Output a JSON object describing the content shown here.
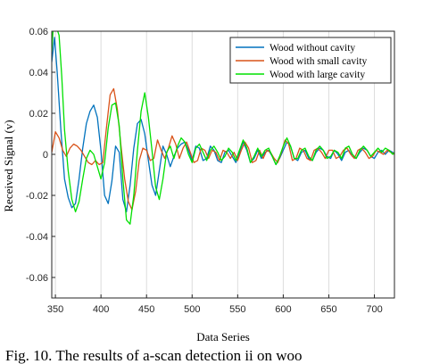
{
  "chart_data": {
    "type": "line",
    "title": "",
    "xlabel": "Data Series",
    "ylabel": "Received Signal (v)",
    "xlim": [
      346,
      722
    ],
    "ylim": [
      -0.07,
      0.06
    ],
    "xticks": [
      350,
      400,
      450,
      500,
      550,
      600,
      650,
      700
    ],
    "yticks": [
      -0.06,
      -0.04,
      -0.02,
      0,
      0.02,
      0.04,
      0.06
    ],
    "xtick_labels": [
      "350",
      "400",
      "450",
      "500",
      "550",
      "600",
      "650",
      "700"
    ],
    "ytick_labels": [
      "-0.06",
      "-0.04",
      "-0.02",
      "0",
      "0.02",
      "0.04",
      "0.06"
    ],
    "grid": "vertical",
    "legend_position": "top-right",
    "series": [
      {
        "name": "Wood without cavity",
        "color": "#0072BD",
        "x": [
          346,
          349,
          352,
          356,
          360,
          364,
          368,
          372,
          376,
          380,
          384,
          388,
          392,
          396,
          400,
          404,
          408,
          412,
          416,
          420,
          424,
          428,
          432,
          436,
          440,
          444,
          448,
          452,
          456,
          460,
          464,
          468,
          472,
          476,
          480,
          484,
          488,
          492,
          496,
          500,
          504,
          508,
          512,
          516,
          520,
          524,
          528,
          532,
          536,
          540,
          544,
          548,
          552,
          556,
          560,
          564,
          568,
          572,
          576,
          580,
          584,
          588,
          592,
          596,
          600,
          604,
          608,
          612,
          616,
          620,
          624,
          628,
          632,
          636,
          640,
          644,
          648,
          652,
          656,
          660,
          664,
          668,
          672,
          676,
          680,
          684,
          688,
          692,
          696,
          700,
          704,
          708,
          712,
          716,
          720,
          722
        ],
        "values": [
          0.045,
          0.057,
          0.04,
          0.012,
          -0.012,
          -0.021,
          -0.026,
          -0.024,
          -0.012,
          0.003,
          0.015,
          0.021,
          0.024,
          0.018,
          0.002,
          -0.02,
          -0.024,
          -0.013,
          0.004,
          0.001,
          -0.022,
          -0.028,
          -0.015,
          0.003,
          0.015,
          0.017,
          0.01,
          -0.003,
          -0.015,
          -0.02,
          -0.008,
          0.004,
          0.0,
          -0.006,
          -0.001,
          0.003,
          0.005,
          0.006,
          0.002,
          -0.003,
          0.004,
          0.003,
          -0.003,
          -0.002,
          0.004,
          0.002,
          -0.003,
          -0.004,
          0.001,
          0.002,
          -0.001,
          -0.004,
          0.001,
          0.006,
          0.002,
          -0.004,
          -0.002,
          0.002,
          -0.002,
          0.001,
          0.002,
          -0.001,
          -0.005,
          -0.002,
          0.002,
          0.006,
          0.004,
          -0.002,
          -0.003,
          0.001,
          0.002,
          -0.002,
          -0.003,
          0.001,
          0.003,
          0.002,
          -0.001,
          -0.002,
          0.002,
          0.0,
          -0.003,
          0.001,
          0.002,
          -0.001,
          -0.002,
          0.001,
          0.003,
          0.002,
          -0.001,
          -0.002,
          0.001,
          0.002,
          0.0,
          0.002,
          0.001,
          0.0
        ]
      },
      {
        "name": "Wood with small cavity",
        "color": "#D95319",
        "x": [
          346,
          350,
          354,
          358,
          362,
          366,
          370,
          374,
          378,
          382,
          386,
          390,
          394,
          398,
          402,
          406,
          410,
          414,
          418,
          422,
          426,
          430,
          434,
          438,
          442,
          446,
          450,
          454,
          458,
          462,
          466,
          470,
          474,
          478,
          482,
          486,
          490,
          494,
          498,
          502,
          506,
          510,
          514,
          518,
          522,
          526,
          530,
          534,
          538,
          542,
          546,
          550,
          554,
          558,
          562,
          566,
          570,
          574,
          578,
          582,
          586,
          590,
          594,
          598,
          602,
          606,
          610,
          614,
          618,
          622,
          626,
          630,
          634,
          638,
          642,
          646,
          650,
          654,
          658,
          662,
          666,
          670,
          674,
          678,
          682,
          686,
          690,
          694,
          698,
          702,
          706,
          710,
          714,
          718,
          722
        ],
        "values": [
          0.001,
          0.011,
          0.008,
          0.002,
          -0.001,
          0.003,
          0.005,
          0.004,
          0.002,
          -0.001,
          -0.004,
          -0.005,
          -0.003,
          -0.005,
          -0.004,
          0.013,
          0.029,
          0.032,
          0.022,
          0.004,
          -0.012,
          -0.023,
          -0.027,
          -0.018,
          -0.003,
          0.003,
          0.002,
          -0.003,
          -0.002,
          0.007,
          0.002,
          -0.002,
          0.003,
          0.009,
          0.005,
          -0.002,
          0.003,
          0.006,
          0.001,
          -0.004,
          -0.003,
          0.003,
          0.002,
          -0.002,
          0.002,
          0.001,
          -0.003,
          0.002,
          0.001,
          -0.002,
          0.001,
          -0.003,
          0.002,
          0.006,
          0.003,
          -0.004,
          -0.003,
          0.002,
          -0.002,
          0.002,
          0.001,
          -0.002,
          -0.004,
          0.001,
          0.007,
          0.005,
          -0.003,
          -0.002,
          0.003,
          0.002,
          -0.002,
          -0.003,
          0.002,
          0.003,
          0.001,
          -0.002,
          0.002,
          0.002,
          -0.002,
          -0.001,
          0.002,
          0.003,
          0.0,
          -0.002,
          0.002,
          0.003,
          0.001,
          -0.002,
          -0.001,
          0.002,
          0.001,
          0.0,
          0.002,
          0.001,
          0.0
        ]
      },
      {
        "name": "Wood with large cavity",
        "color": "#00E000",
        "x": [
          346,
          348,
          351,
          354,
          357,
          360,
          364,
          368,
          372,
          376,
          380,
          384,
          388,
          392,
          396,
          400,
          404,
          408,
          412,
          416,
          420,
          424,
          428,
          432,
          436,
          440,
          444,
          448,
          452,
          456,
          460,
          464,
          468,
          472,
          476,
          480,
          484,
          488,
          492,
          496,
          500,
          504,
          508,
          512,
          516,
          520,
          524,
          528,
          532,
          536,
          540,
          544,
          548,
          552,
          556,
          560,
          564,
          568,
          572,
          576,
          580,
          584,
          588,
          592,
          596,
          600,
          604,
          608,
          612,
          616,
          620,
          624,
          628,
          632,
          636,
          640,
          644,
          648,
          652,
          656,
          660,
          664,
          668,
          672,
          676,
          680,
          684,
          688,
          692,
          696,
          700,
          704,
          708,
          712,
          716,
          720,
          722
        ],
        "values": [
          0.05,
          0.065,
          0.062,
          0.058,
          0.038,
          0.012,
          -0.008,
          -0.022,
          -0.028,
          -0.023,
          -0.012,
          -0.002,
          0.002,
          0.0,
          -0.006,
          -0.012,
          -0.004,
          0.013,
          0.024,
          0.025,
          0.014,
          -0.012,
          -0.032,
          -0.034,
          -0.02,
          0.002,
          0.021,
          0.03,
          0.018,
          0.002,
          -0.016,
          -0.022,
          -0.012,
          0.001,
          0.004,
          -0.002,
          0.004,
          0.008,
          0.006,
          0.0,
          -0.004,
          0.003,
          0.005,
          0.001,
          -0.003,
          0.002,
          0.004,
          0.001,
          -0.003,
          -0.001,
          0.003,
          0.001,
          -0.003,
          0.002,
          0.007,
          0.003,
          -0.004,
          -0.001,
          0.003,
          -0.001,
          0.002,
          0.003,
          -0.001,
          -0.005,
          -0.001,
          0.004,
          0.008,
          0.004,
          -0.002,
          -0.002,
          0.002,
          0.003,
          -0.001,
          -0.003,
          0.002,
          0.004,
          0.002,
          -0.002,
          -0.001,
          0.002,
          0.001,
          -0.002,
          0.003,
          0.004,
          0.0,
          -0.002,
          0.002,
          0.004,
          0.002,
          -0.001,
          0.001,
          0.003,
          0.001,
          0.003,
          0.002,
          0.0,
          0.001
        ]
      }
    ]
  },
  "caption": "Fig. 10. The results of a-scan detection ii on woo"
}
